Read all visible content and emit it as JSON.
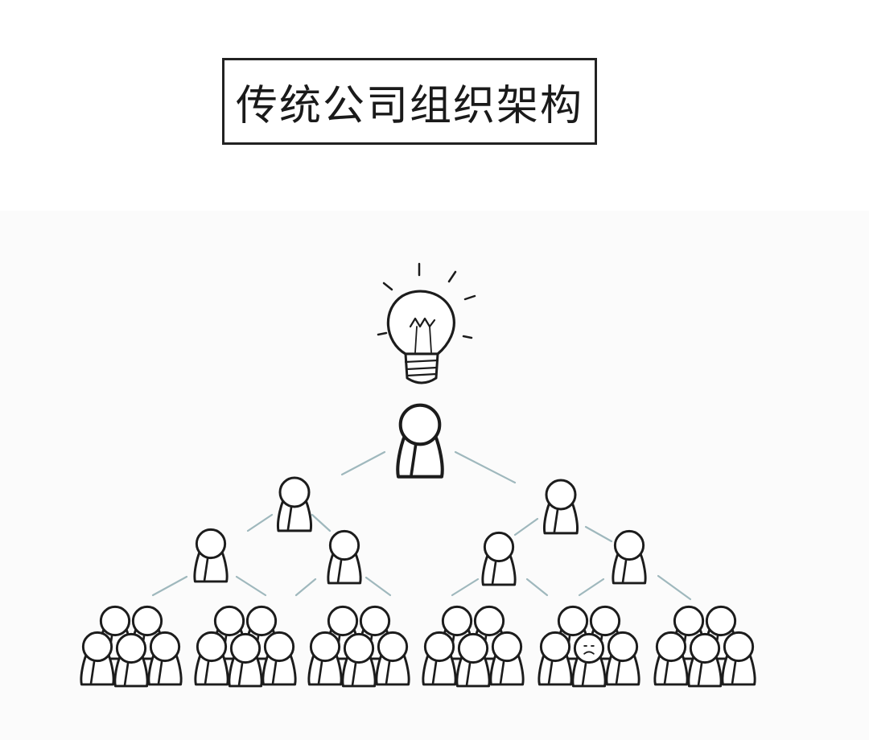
{
  "title": "传统公司组织架构",
  "diagram": {
    "icons": [
      "lightbulb-icon",
      "person-icon",
      "sad-person-icon"
    ],
    "colors": {
      "ink": "#1c1c1c",
      "connector": "#9fb8bd",
      "background": "#fbfbfb"
    }
  }
}
